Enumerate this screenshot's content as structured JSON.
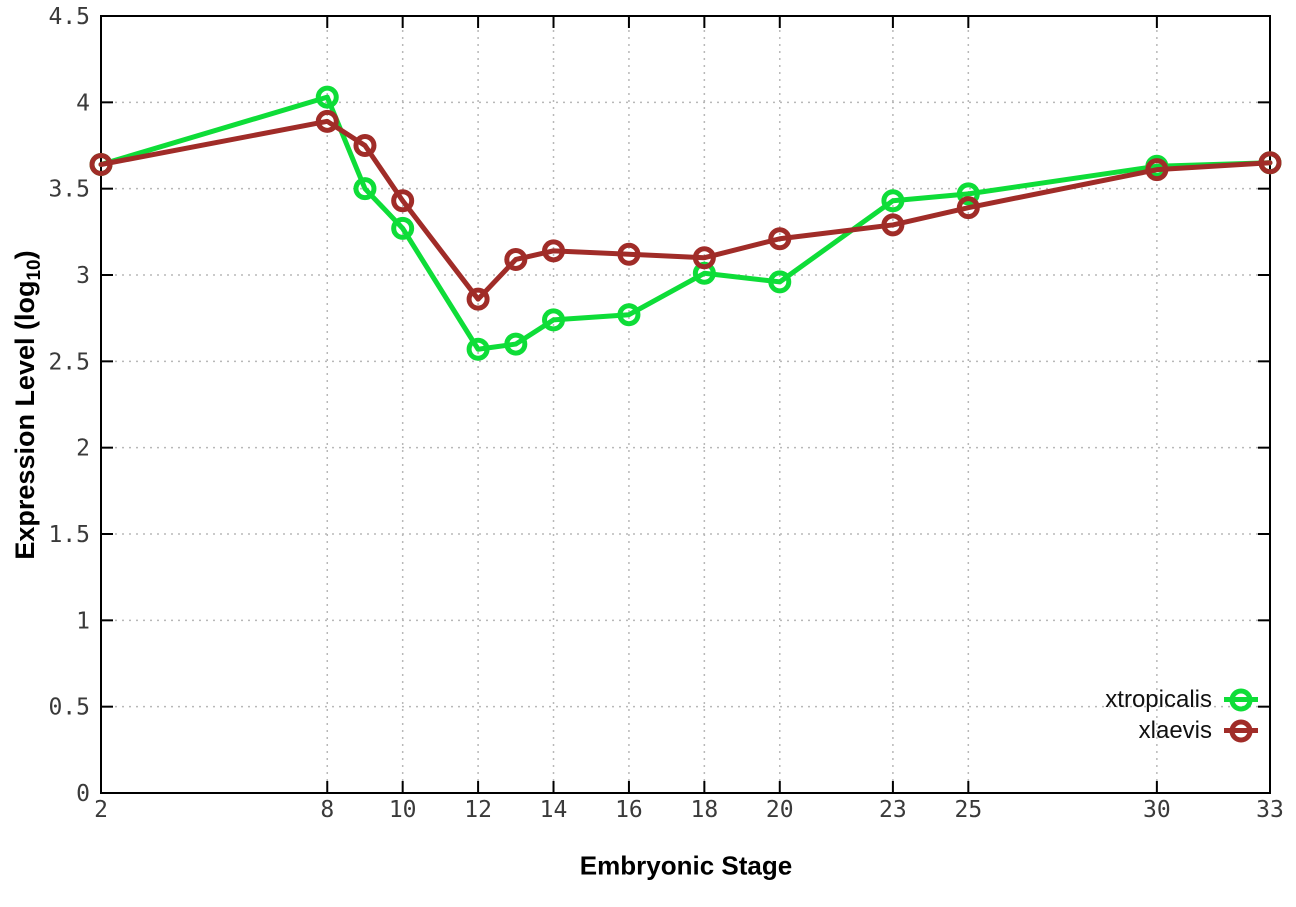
{
  "page": {
    "background": "#ffffff"
  },
  "chart_data": {
    "type": "line",
    "title": "",
    "xlabel": "Embryonic Stage",
    "ylabel": {
      "prefix": "Expression Level (log",
      "subscript": "10",
      "suffix": ")"
    },
    "xlim": [
      2,
      33
    ],
    "ylim": [
      0,
      4.5
    ],
    "grid": true,
    "legend_position": "bottom-right",
    "x": [
      2,
      8,
      9,
      10,
      12,
      13,
      14,
      16,
      18,
      20,
      23,
      25,
      30,
      33
    ],
    "xtick_labels": [
      "2",
      "8",
      "10",
      "12",
      "14",
      "16",
      "18",
      "20",
      "23",
      "25",
      "30",
      "33"
    ],
    "ytick_labels": [
      "0",
      "0.5",
      "1",
      "1.5",
      "2",
      "2.5",
      "3",
      "3.5",
      "4",
      "4.5"
    ],
    "series": [
      {
        "name": "xtropicalis",
        "color": "#0edd38",
        "values": [
          3.64,
          4.03,
          3.5,
          3.27,
          2.57,
          2.6,
          2.74,
          2.77,
          3.01,
          2.96,
          3.43,
          3.47,
          3.63,
          3.65
        ]
      },
      {
        "name": "xlaevis",
        "color": "#a02c28",
        "values": [
          3.64,
          3.89,
          3.75,
          3.43,
          2.86,
          3.09,
          3.14,
          3.12,
          3.1,
          3.21,
          3.29,
          3.39,
          3.61,
          3.65
        ]
      }
    ],
    "style": {
      "axis_color": "#000000",
      "grid_color": "#b8b8b8",
      "tick_label_color": "#3a3a3a",
      "line_width": 5,
      "marker_radius": 9
    }
  }
}
